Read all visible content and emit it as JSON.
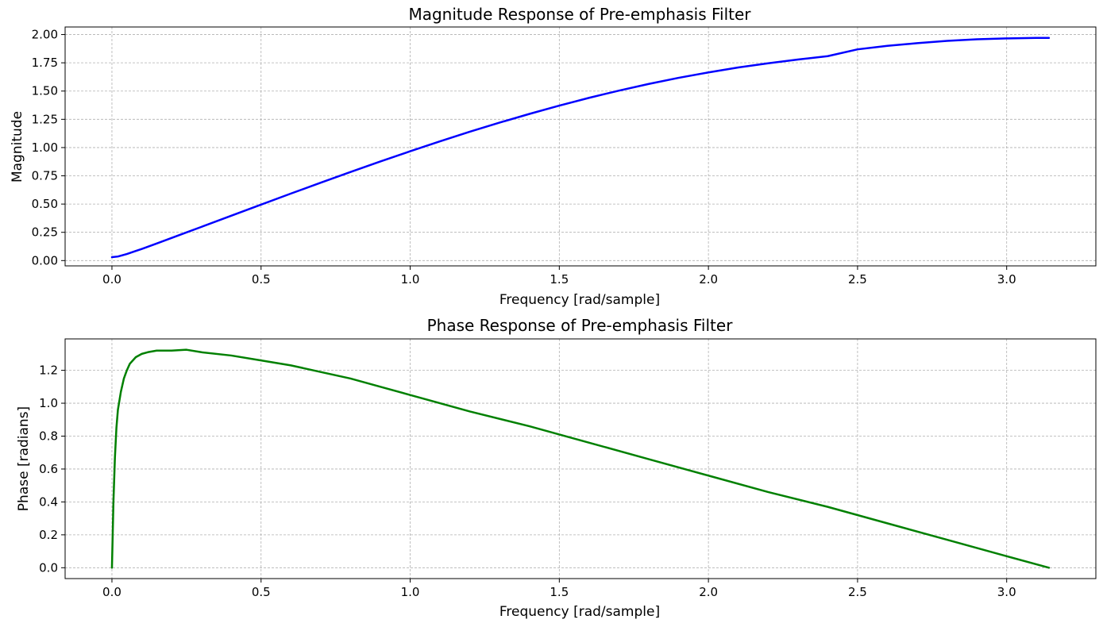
{
  "chart_data": [
    {
      "type": "line",
      "title": "Magnitude Response of Pre-emphasis Filter",
      "xlabel": "Frequency [rad/sample]",
      "ylabel": "Magnitude",
      "xlim": [
        -0.157,
        3.299
      ],
      "ylim": [
        -0.047,
        2.067
      ],
      "grid": true,
      "xticks": [
        0.0,
        0.5,
        1.0,
        1.5,
        2.0,
        2.5,
        3.0
      ],
      "xtick_labels": [
        "0.0",
        "0.5",
        "1.0",
        "1.5",
        "2.0",
        "2.5",
        "3.0"
      ],
      "yticks": [
        0.0,
        0.25,
        0.5,
        0.75,
        1.0,
        1.25,
        1.5,
        1.75,
        2.0
      ],
      "ytick_labels": [
        "0.00",
        "0.25",
        "0.50",
        "0.75",
        "1.00",
        "1.25",
        "1.50",
        "1.75",
        "2.00"
      ],
      "series": [
        {
          "color": "#0000ff",
          "x": [
            0.0,
            0.02,
            0.05,
            0.08,
            0.1,
            0.15,
            0.2,
            0.25,
            0.3,
            0.4,
            0.5,
            0.6,
            0.7,
            0.8,
            0.9,
            1.0,
            1.1,
            1.2,
            1.3,
            1.4,
            1.5,
            1.6,
            1.7,
            1.8,
            1.9,
            2.0,
            2.1,
            2.2,
            2.3,
            2.4,
            2.5,
            2.6,
            2.7,
            2.8,
            2.9,
            3.0,
            3.1,
            3.1416
          ],
          "y": [
            0.03,
            0.036,
            0.058,
            0.085,
            0.103,
            0.151,
            0.2,
            0.249,
            0.298,
            0.397,
            0.495,
            0.593,
            0.689,
            0.784,
            0.877,
            0.967,
            1.055,
            1.14,
            1.221,
            1.298,
            1.371,
            1.44,
            1.504,
            1.563,
            1.617,
            1.665,
            1.709,
            1.746,
            1.779,
            1.809,
            1.869,
            1.9,
            1.924,
            1.944,
            1.958,
            1.966,
            1.97,
            1.97
          ]
        }
      ]
    },
    {
      "type": "line",
      "title": "Phase Response of Pre-emphasis Filter",
      "xlabel": "Frequency [rad/sample]",
      "ylabel": "Phase [radians]",
      "xlim": [
        -0.157,
        3.299
      ],
      "ylim": [
        -0.066,
        1.391
      ],
      "grid": true,
      "xticks": [
        0.0,
        0.5,
        1.0,
        1.5,
        2.0,
        2.5,
        3.0
      ],
      "xtick_labels": [
        "0.0",
        "0.5",
        "1.0",
        "1.5",
        "2.0",
        "2.5",
        "3.0"
      ],
      "yticks": [
        0.0,
        0.2,
        0.4,
        0.6,
        0.8,
        1.0,
        1.2
      ],
      "ytick_labels": [
        "0.0",
        "0.2",
        "0.4",
        "0.6",
        "0.8",
        "1.0",
        "1.2"
      ],
      "series": [
        {
          "color": "#008000",
          "x": [
            0.0,
            0.005,
            0.01,
            0.015,
            0.02,
            0.03,
            0.04,
            0.05,
            0.06,
            0.08,
            0.1,
            0.12,
            0.15,
            0.2,
            0.25,
            0.3,
            0.4,
            0.5,
            0.6,
            0.7,
            0.8,
            0.9,
            1.0,
            1.2,
            1.4,
            1.6,
            1.8,
            2.0,
            2.2,
            2.4,
            2.6,
            2.8,
            3.0,
            3.1416
          ],
          "y": [
            0.0,
            0.4,
            0.67,
            0.85,
            0.96,
            1.07,
            1.15,
            1.2,
            1.24,
            1.28,
            1.3,
            1.31,
            1.32,
            1.32,
            1.325,
            1.31,
            1.29,
            1.26,
            1.23,
            1.19,
            1.15,
            1.1,
            1.05,
            0.95,
            0.86,
            0.76,
            0.66,
            0.56,
            0.46,
            0.37,
            0.27,
            0.17,
            0.07,
            0.0
          ]
        }
      ]
    }
  ]
}
